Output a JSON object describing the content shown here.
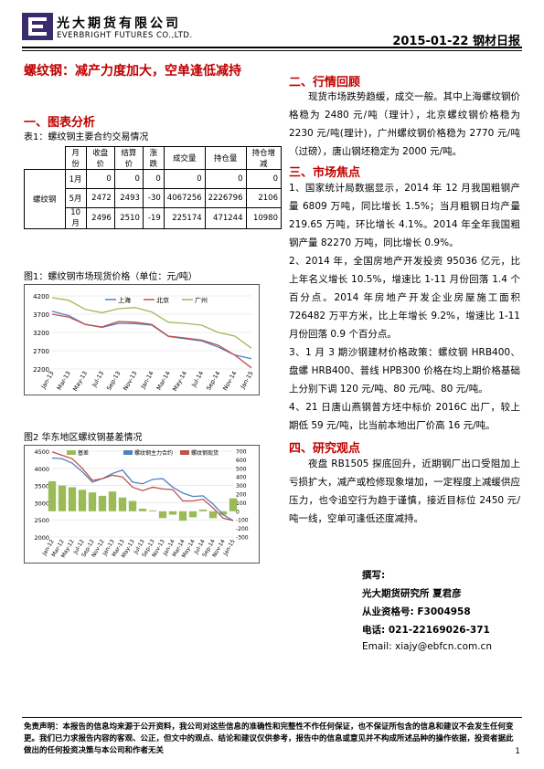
{
  "header": {
    "company_cn": "光大期货有限公司",
    "company_en": "EVERBRIGHT FUTURES CO.,LTD.",
    "date_title": "2015-01-22  钢材日报"
  },
  "title": "螺纹钢：减产力度加大，空单逢低减持",
  "left": {
    "section1": "一、图表分析",
    "table_caption": "表1：螺纹钢主要合约交易情况",
    "table": {
      "headers": [
        "月份",
        "收盘价",
        "结算价",
        "涨跌",
        "成交量",
        "持仓量",
        "持仓增减"
      ],
      "row_label": "螺纹钢",
      "rows": [
        [
          "1月",
          "0",
          "0",
          "0",
          "0",
          "0",
          "0"
        ],
        [
          "5月",
          "2472",
          "2493",
          "-30",
          "4067256",
          "2226796",
          "2106"
        ],
        [
          "10月",
          "2496",
          "2510",
          "-19",
          "225174",
          "471244",
          "10980"
        ]
      ]
    },
    "chart1_caption": "图1：螺纹钢市场现货价格（单位：元/吨）",
    "chart2_caption": "图2  华东地区螺纹钢基差情况"
  },
  "chart_data": [
    {
      "type": "line",
      "legend_placement": "top",
      "x": [
        "Jan-13",
        "Mar-13",
        "May-13",
        "Jul-13",
        "Sep-13",
        "Nov-13",
        "Jan-14",
        "Mar-14",
        "May-14",
        "Jul-14",
        "Sep-14",
        "Nov-14",
        "Jan-15"
      ],
      "ylim": [
        2200,
        4200
      ],
      "yticks": [
        2200,
        2700,
        3200,
        3700,
        4200
      ],
      "series": [
        {
          "name": "上海",
          "color": "#4f81bd",
          "values": [
            3780,
            3660,
            3420,
            3340,
            3450,
            3440,
            3400,
            3090,
            3030,
            2970,
            2800,
            2580,
            2480
          ]
        },
        {
          "name": "北京",
          "color": "#c0504d",
          "values": [
            3700,
            3620,
            3420,
            3350,
            3500,
            3480,
            3420,
            3100,
            3050,
            2990,
            2850,
            2580,
            2230
          ]
        },
        {
          "name": "广州",
          "color": "#9bbb59",
          "values": [
            4150,
            4080,
            3830,
            3740,
            3850,
            3880,
            3760,
            3480,
            3450,
            3400,
            3200,
            3100,
            2770
          ]
        }
      ]
    },
    {
      "type": "line",
      "legend_placement": "top",
      "x": [
        "Jan-12",
        "Mar-12",
        "May-12",
        "Jul-12",
        "Sep-12",
        "Nov-12",
        "Jan-13",
        "Mar-13",
        "May-13",
        "Jul-13",
        "Sep-13",
        "Nov-13",
        "Jan-14",
        "Mar-14",
        "May-14",
        "Jul-14",
        "Sep-14",
        "Nov-14",
        "Jan-15"
      ],
      "ylim_left": [
        2000,
        4500
      ],
      "yticks_left": [
        2000,
        2500,
        3000,
        3500,
        4000,
        4500
      ],
      "ylim_right": [
        -300,
        700
      ],
      "yticks_right": [
        -300,
        -200,
        -100,
        0,
        100,
        200,
        300,
        400,
        500,
        600,
        700
      ],
      "series": [
        {
          "name": "基差",
          "color": "#9bbb59",
          "axis": "right",
          "kind": "bar",
          "values": [
            350,
            300,
            280,
            250,
            220,
            180,
            230,
            160,
            120,
            30,
            10,
            -80,
            -40,
            -110,
            -70,
            20,
            -80,
            -40,
            150
          ]
        },
        {
          "name": "螺纹钢主力合约",
          "color": "#4f81bd",
          "axis": "left",
          "values": [
            4300,
            4280,
            4150,
            3900,
            3600,
            3700,
            3850,
            3950,
            3600,
            3550,
            3680,
            3700,
            3450,
            3280,
            3180,
            3200,
            2960,
            2650,
            2480
          ]
        },
        {
          "name": "螺纹钢现货",
          "color": "#c0504d",
          "axis": "left",
          "values": [
            4480,
            4380,
            4280,
            4000,
            3650,
            3700,
            3800,
            3750,
            3450,
            3350,
            3450,
            3400,
            3380,
            3050,
            3050,
            3100,
            2850,
            2550,
            2480
          ]
        }
      ]
    }
  ],
  "right": {
    "section2": "二、行情回顾",
    "para2": "现货市场跌势趋缓，成交一般。其中上海螺纹钢价格稳为 2480 元/吨（理计），北京螺纹钢价格稳为 2230 元/吨(理计)，广州螺纹钢价格稳为 2770 元/吨（过磅），唐山钢坯稳定为 2000 元/吨。",
    "section3": "三、市场焦点",
    "focus1": "1、国家统计局数据显示，2014 年 12 月我国粗钢产量 6809 万吨，同比增长 1.5%；当月粗钢日均产量 219.65 万吨，环比增长 4.1%。2014 年全年我国粗钢产量 82270 万吨，同比增长 0.9%。",
    "focus2": "2、2014 年，全国房地产开发投资 95036 亿元，比上年名义增长 10.5%，增速比 1-11 月份回落 1.4 个百分点。2014 年房地产开发企业房屋施工面积 726482 万平方米，比上年增长 9.2%，增速比 1-11 月份回落 0.9 个百分点。",
    "focus3": "3、1 月 3 期沙钢建材价格政策：螺纹钢 HRB400、盘螺 HRB400、普线 HPB300 价格在均上期价格基础上分别下调 120 元/吨、80 元/吨、80 元/吨。",
    "focus4": "4、21 日唐山燕钢普方坯中标价 2016C 出厂，较上期低 59 元/吨，比当前本地出厂价高 16 元/吨。",
    "section4": "四、研究观点",
    "para4": "夜盘 RB1505 探底回升，近期钢厂出口受阻加上亏损扩大，减产或检修现象增加，一定程度上减缓供应压力，也令追空行为趋于谨慎，接近目标位 2450 元/吨一线，空单可逢低还度减持。"
  },
  "author": {
    "label": "撰写:",
    "name": "光大期货研究所  夏君彦",
    "license": "从业资格号:   F3004958",
    "phone": "电话:  021-22169026-371",
    "email": "Email:  xiajy@ebfcn.com.cn"
  },
  "footer": {
    "disclaimer": "免责声明：本报告的信息均来源于公开资料，我公司对这些信息的准确性和完整性不作任何保证，也不保证所包含的信息和建议不会发生任何变更。我们已力求报告内容的客观、公正，但文中的观点、结论和建议仅供参考，报告中的信息或意见并不构成所述品种的操作依据，投资者据此做出的任何投资决策与本公司和作者无关",
    "page": "1"
  }
}
